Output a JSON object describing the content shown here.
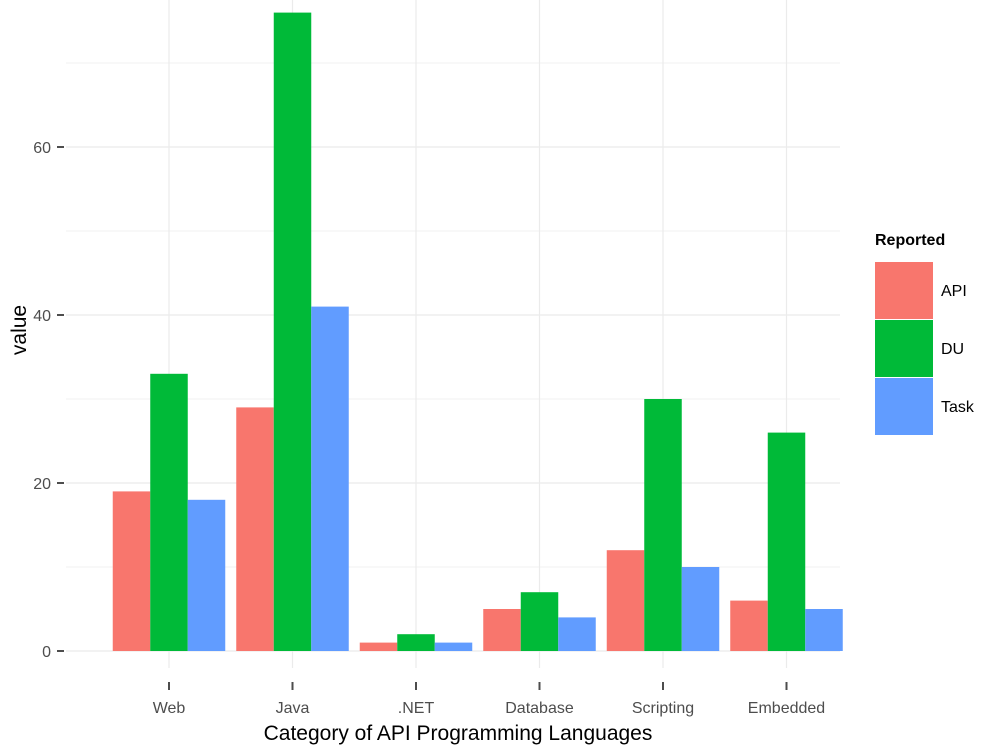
{
  "chart_data": {
    "type": "bar",
    "xlabel": "Category of API Programming Languages",
    "ylabel": "value",
    "categories": [
      "Web",
      "Java",
      ".NET",
      "Database",
      "Scripting",
      "Embedded"
    ],
    "series": [
      {
        "name": "API",
        "color": "#F8766D",
        "values": [
          19,
          29,
          1,
          5,
          12,
          6
        ]
      },
      {
        "name": "DU",
        "color": "#00BA38",
        "values": [
          33,
          76,
          2,
          7,
          30,
          26
        ]
      },
      {
        "name": "Task",
        "color": "#619CFF",
        "values": [
          18,
          41,
          1,
          4,
          10,
          5
        ]
      }
    ],
    "yticks": [
      "0",
      "20",
      "40",
      "60"
    ],
    "ylim": [
      0,
      76
    ],
    "grid": true,
    "legend": {
      "title": "Reported",
      "position": "right"
    }
  }
}
